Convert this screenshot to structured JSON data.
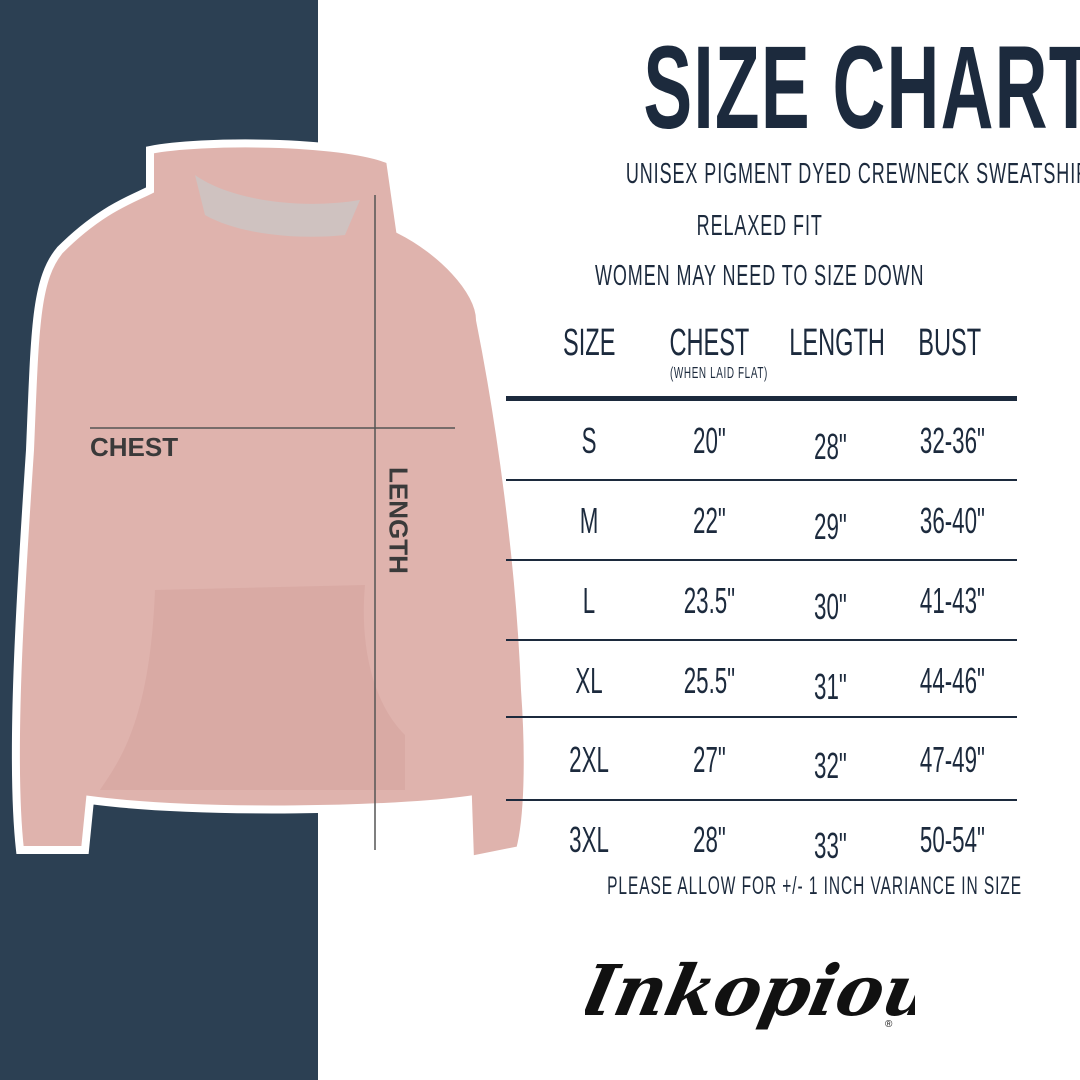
{
  "title": "SIZE CHART",
  "subtitle": "UNISEX PIGMENT DYED CREWNECK SWEATSHIRT",
  "fit": "RELAXED FIT",
  "advice": "WOMEN MAY NEED TO SIZE DOWN",
  "table": {
    "headers": [
      "SIZE",
      "CHEST",
      "LENGTH",
      "BUST"
    ],
    "chest_note": "(WHEN LAID FLAT)",
    "rows": [
      [
        "S",
        "20\"",
        "28\"",
        "32-36\""
      ],
      [
        "M",
        "22\"",
        "29\"",
        "36-40\""
      ],
      [
        "L",
        "23.5\"",
        "30\"",
        "41-43\""
      ],
      [
        "XL",
        "25.5\"",
        "31\"",
        "44-46\""
      ],
      [
        "2XL",
        "27\"",
        "32\"",
        "47-49\""
      ],
      [
        "3XL",
        "28\"",
        "33\"",
        "50-54\""
      ]
    ]
  },
  "footer_note": "PLEASE ALLOW FOR +/- 1 INCH VARIANCE IN SIZE",
  "brand": "Inkopious",
  "diagram": {
    "chest_label": "CHEST",
    "length_label": "LENGTH"
  },
  "colors": {
    "navy": "#2c4053",
    "text": "#1c2a3d",
    "garment": "#dfb3ad"
  }
}
